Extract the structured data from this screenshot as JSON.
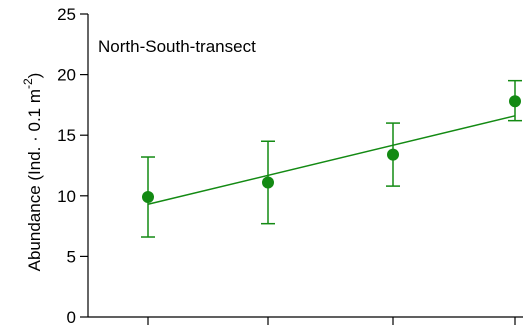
{
  "chart_data": {
    "type": "scatter",
    "annotation": "North-South-transect",
    "ylabel_main": "Abundance (Ind. · 0.1 m",
    "ylabel_sup": "-2",
    "ylabel_close": ")",
    "xlabel": "",
    "ylim": [
      0,
      25
    ],
    "yticks": [
      0,
      5,
      10,
      15,
      20,
      25
    ],
    "grid": false,
    "color": "#138a13",
    "series": [
      {
        "x": [
          1,
          2,
          3,
          4
        ],
        "y": [
          9.9,
          11.1,
          13.4,
          17.8
        ],
        "error_low": [
          6.6,
          7.7,
          10.8,
          16.2
        ],
        "error_high": [
          13.2,
          14.5,
          16.0,
          19.5
        ]
      }
    ],
    "trendline": {
      "x": [
        1,
        4
      ],
      "y": [
        9.3,
        16.6
      ]
    }
  }
}
